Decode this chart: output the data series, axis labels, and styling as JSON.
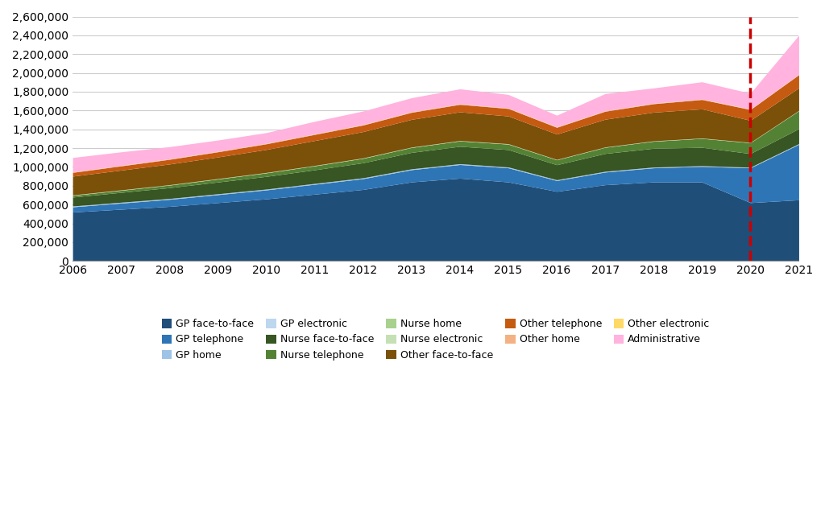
{
  "years": [
    2006,
    2007,
    2008,
    2009,
    2010,
    2011,
    2012,
    2013,
    2014,
    2015,
    2016,
    2017,
    2018,
    2019,
    2020,
    2021
  ],
  "series": {
    "GP face-to-face": [
      520000,
      550000,
      580000,
      620000,
      660000,
      710000,
      760000,
      840000,
      880000,
      840000,
      740000,
      810000,
      840000,
      840000,
      620000,
      650000
    ],
    "GP telephone": [
      55000,
      65000,
      75000,
      85000,
      95000,
      105000,
      115000,
      130000,
      145000,
      150000,
      115000,
      135000,
      150000,
      165000,
      370000,
      590000
    ],
    "GP home": [
      8000,
      8000,
      8000,
      8000,
      8000,
      8000,
      8000,
      8000,
      8000,
      8000,
      7000,
      7000,
      7000,
      7000,
      6000,
      6000
    ],
    "GP electronic": [
      1000,
      1000,
      1000,
      1000,
      1000,
      1000,
      1000,
      1000,
      1000,
      1000,
      1000,
      1000,
      1000,
      1000,
      1000,
      1000
    ],
    "Nurse face-to-face": [
      95000,
      105000,
      115000,
      125000,
      135000,
      145000,
      160000,
      175000,
      185000,
      185000,
      160000,
      190000,
      200000,
      195000,
      145000,
      160000
    ],
    "Nurse telephone": [
      18000,
      22000,
      27000,
      32000,
      37000,
      42000,
      47000,
      52000,
      57000,
      58000,
      52000,
      65000,
      75000,
      95000,
      115000,
      190000
    ],
    "Nurse home": [
      4000,
      4000,
      4000,
      4000,
      4000,
      4000,
      4000,
      4000,
      4000,
      4000,
      3500,
      3500,
      3500,
      3500,
      3000,
      3000
    ],
    "Nurse electronic": [
      500,
      500,
      500,
      500,
      500,
      500,
      500,
      500,
      500,
      500,
      500,
      500,
      500,
      500,
      500,
      500
    ],
    "Other face-to-face": [
      200000,
      210000,
      220000,
      230000,
      245000,
      265000,
      280000,
      295000,
      305000,
      295000,
      270000,
      295000,
      305000,
      310000,
      235000,
      240000
    ],
    "Other telephone": [
      40000,
      45000,
      50000,
      55000,
      60000,
      65000,
      70000,
      75000,
      80000,
      80000,
      72000,
      85000,
      90000,
      100000,
      115000,
      140000
    ],
    "Other home": [
      4000,
      4000,
      4000,
      4000,
      4000,
      4000,
      4000,
      4000,
      4000,
      4000,
      3500,
      3500,
      3500,
      3500,
      3000,
      3500
    ],
    "Other electronic": [
      1500,
      1500,
      1500,
      1500,
      1500,
      1500,
      1500,
      1500,
      1500,
      1500,
      1500,
      1500,
      1500,
      1500,
      1500,
      1500
    ],
    "Administrative": [
      153000,
      144000,
      129000,
      119500,
      113500,
      134000,
      143500,
      149500,
      159500,
      143500,
      124000,
      183000,
      163000,
      183000,
      169000,
      415000
    ]
  },
  "colors": {
    "GP face-to-face": "#1f4e79",
    "GP telephone": "#2e75b6",
    "GP home": "#9dc3e6",
    "GP electronic": "#bdd7ee",
    "Nurse face-to-face": "#375623",
    "Nurse telephone": "#548235",
    "Nurse home": "#a9d18e",
    "Nurse electronic": "#c5e0b4",
    "Other face-to-face": "#7b5009",
    "Other telephone": "#c55a11",
    "Other home": "#f4b183",
    "Other electronic": "#ffd966",
    "Administrative": "#ffb3de"
  },
  "ylim": [
    0,
    2600000
  ],
  "yticks": [
    0,
    200000,
    400000,
    600000,
    800000,
    1000000,
    1200000,
    1400000,
    1600000,
    1800000,
    2000000,
    2200000,
    2400000,
    2600000
  ],
  "dashed_line_x": 2020,
  "dashed_line_color": "#cc0000",
  "background_color": "#ffffff"
}
